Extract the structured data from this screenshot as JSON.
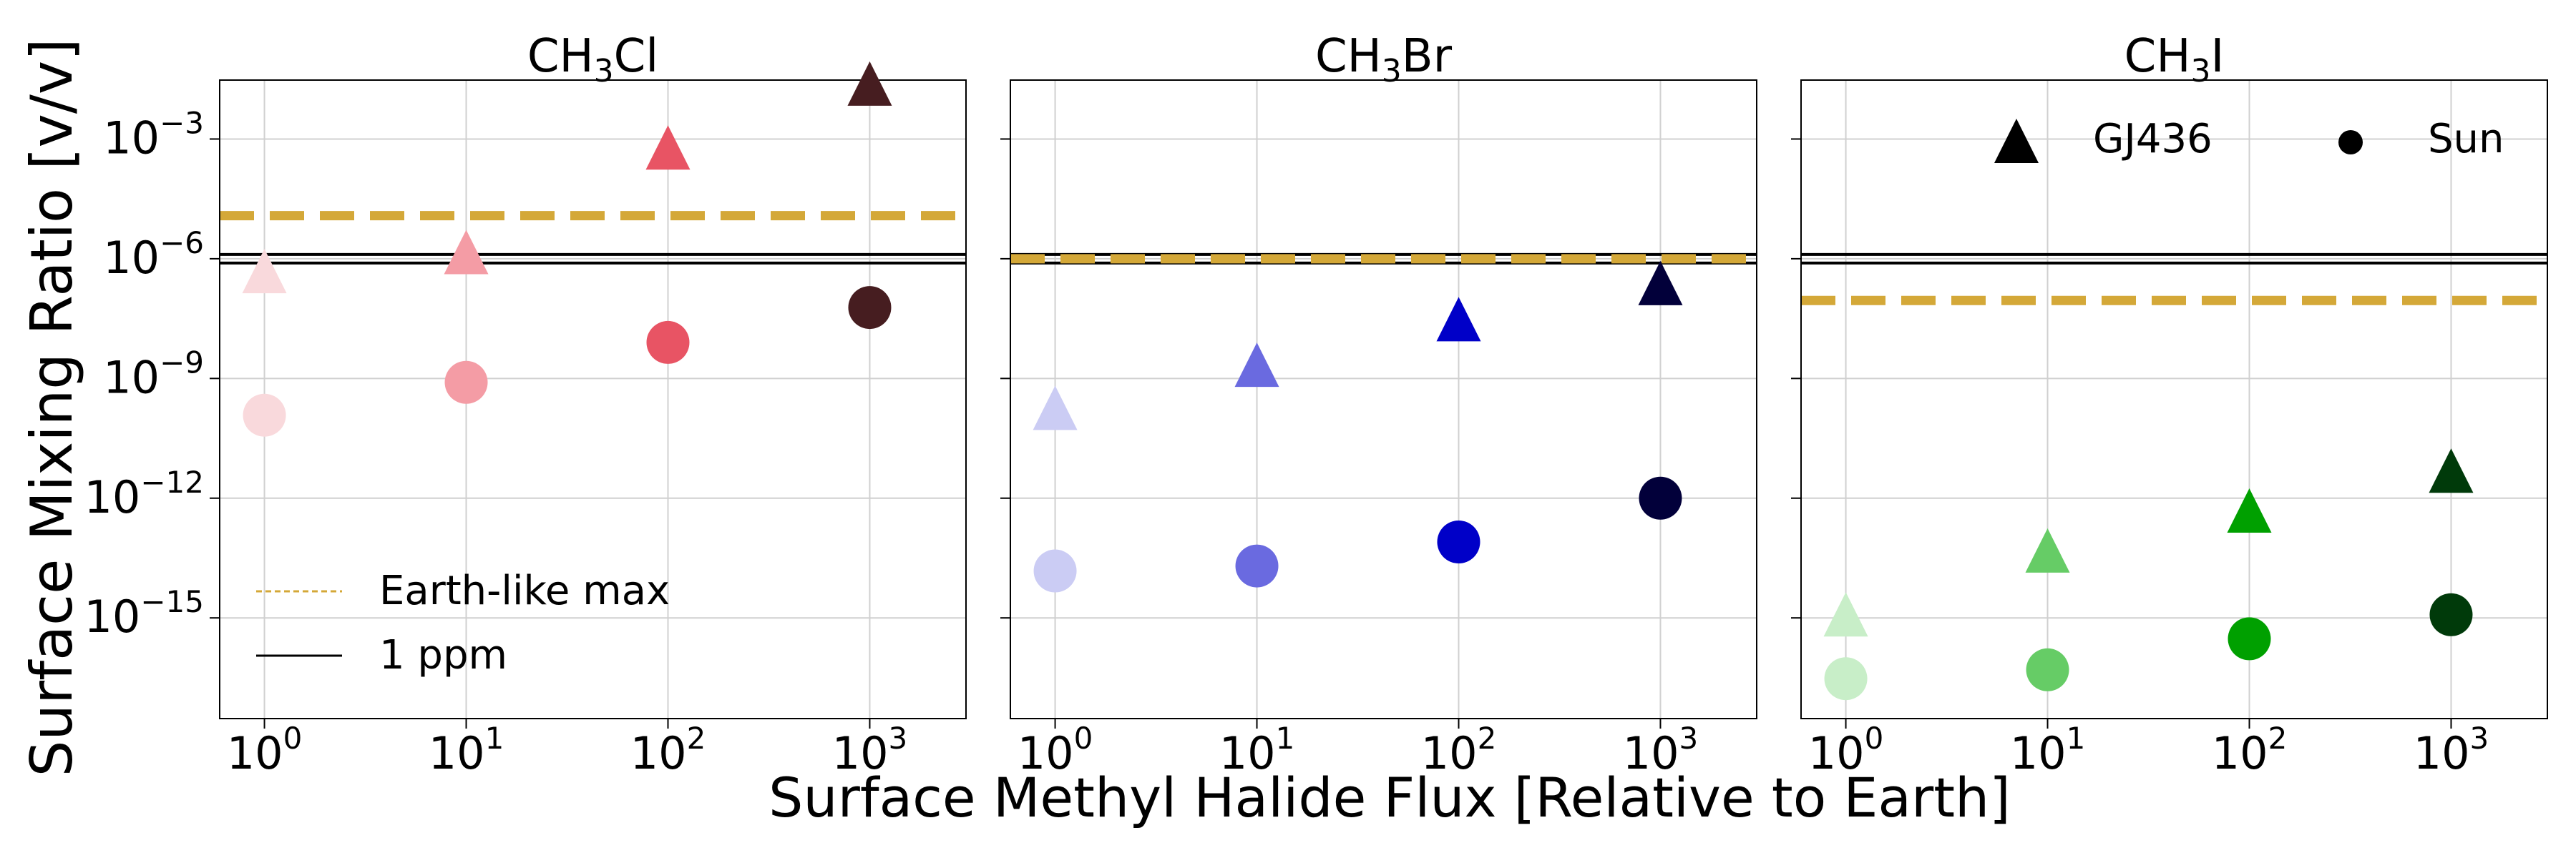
{
  "figure": {
    "ylabel": "Surface Mixing Ratio [v/v]",
    "xlabel": "Surface Methyl Halide Flux [Relative to Earth]"
  },
  "legend_lines": [
    {
      "label": "Earth-like max",
      "color": "#D4A838",
      "style": "dashed"
    },
    {
      "label": "1 ppm",
      "color": "#000000",
      "style": "solid"
    }
  ],
  "legend_markers": [
    {
      "label": "GJ436",
      "marker": "triangle"
    },
    {
      "label": "Sun",
      "marker": "circle"
    }
  ],
  "chart_data": [
    {
      "type": "scatter",
      "title_base": "CH",
      "title_sub": "3",
      "title_end": "Cl",
      "x": [
        1,
        10,
        100,
        1000
      ],
      "xscale": "log",
      "yscale": "log",
      "xlim": [
        0.6,
        3000
      ],
      "ylim": [
        3e-18,
        0.03
      ],
      "xticks": [
        {
          "base": "10",
          "exp": "0"
        },
        {
          "base": "10",
          "exp": "1"
        },
        {
          "base": "10",
          "exp": "2"
        },
        {
          "base": "10",
          "exp": "3"
        }
      ],
      "yticks": [
        {
          "base": "10",
          "exp": "−3",
          "v": 0.001
        },
        {
          "base": "10",
          "exp": "−6",
          "v": 1e-06
        },
        {
          "base": "10",
          "exp": "−9",
          "v": 1e-09
        },
        {
          "base": "10",
          "exp": "−12",
          "v": 1e-12
        },
        {
          "base": "10",
          "exp": "−15",
          "v": 1e-15
        }
      ],
      "show_yticklabels": true,
      "earth_like_max": 1.2e-05,
      "one_ppm": 1e-06,
      "colors": [
        "#F9D9DC",
        "#F49CA5",
        "#E85464",
        "#461D20"
      ],
      "series": [
        {
          "name": "GJ436",
          "marker": "triangle",
          "values": [
            4e-07,
            1.2e-06,
            0.0005,
            0.02
          ]
        },
        {
          "name": "Sun",
          "marker": "circle",
          "values": [
            1.2e-10,
            8e-10,
            8e-09,
            6e-08
          ]
        }
      ]
    },
    {
      "type": "scatter",
      "title_base": "CH",
      "title_sub": "3",
      "title_end": "Br",
      "x": [
        1,
        10,
        100,
        1000
      ],
      "xscale": "log",
      "yscale": "log",
      "xlim": [
        0.6,
        3000
      ],
      "ylim": [
        3e-18,
        0.03
      ],
      "xticks": [
        {
          "base": "10",
          "exp": "0"
        },
        {
          "base": "10",
          "exp": "1"
        },
        {
          "base": "10",
          "exp": "2"
        },
        {
          "base": "10",
          "exp": "3"
        }
      ],
      "yticks": [
        {
          "v": 0.001
        },
        {
          "v": 1e-06
        },
        {
          "v": 1e-09
        },
        {
          "v": 1e-12
        },
        {
          "v": 1e-15
        }
      ],
      "show_yticklabels": false,
      "earth_like_max": 1e-06,
      "one_ppm": 1e-06,
      "colors": [
        "#CBCCF4",
        "#6A6AE0",
        "#0000C8",
        "#02003A"
      ],
      "series": [
        {
          "name": "GJ436",
          "marker": "triangle",
          "values": [
            1.5e-10,
            1.8e-09,
            2.5e-08,
            2e-07
          ]
        },
        {
          "name": "Sun",
          "marker": "circle",
          "values": [
            1.5e-14,
            2e-14,
            8e-14,
            1e-12
          ]
        }
      ]
    },
    {
      "type": "scatter",
      "title_base": "CH",
      "title_sub": "3",
      "title_end": "I",
      "x": [
        1,
        10,
        100,
        1000
      ],
      "xscale": "log",
      "yscale": "log",
      "xlim": [
        0.6,
        3000
      ],
      "ylim": [
        3e-18,
        0.03
      ],
      "xticks": [
        {
          "base": "10",
          "exp": "0"
        },
        {
          "base": "10",
          "exp": "1"
        },
        {
          "base": "10",
          "exp": "2"
        },
        {
          "base": "10",
          "exp": "3"
        }
      ],
      "yticks": [
        {
          "v": 0.001
        },
        {
          "v": 1e-06
        },
        {
          "v": 1e-09
        },
        {
          "v": 1e-12
        },
        {
          "v": 1e-15
        }
      ],
      "show_yticklabels": false,
      "earth_like_max": 9e-08,
      "one_ppm": 1e-06,
      "colors": [
        "#C8EEC8",
        "#66CC66",
        "#00A000",
        "#003A0A"
      ],
      "series": [
        {
          "name": "GJ436",
          "marker": "triangle",
          "values": [
            1e-15,
            4e-14,
            4e-13,
            4e-12
          ]
        },
        {
          "name": "Sun",
          "marker": "circle",
          "values": [
            3e-17,
            5e-17,
            3e-16,
            1.2e-15
          ]
        }
      ]
    }
  ]
}
